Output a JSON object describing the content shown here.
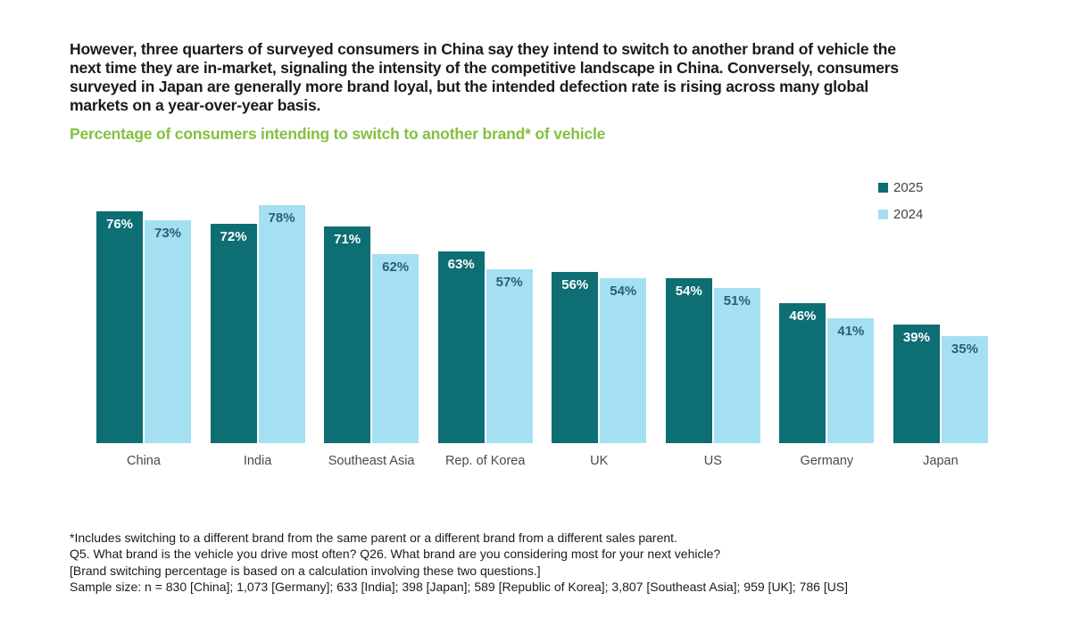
{
  "headline": "However, three quarters of surveyed consumers in China say they intend to switch to another brand of vehicle the next time they are in-market, signaling the intensity of the competitive landscape in China. Conversely, consumers surveyed in Japan are generally more brand loyal, but the intended defection rate is rising across many global markets on a year-over-year basis.",
  "subtitle": "Percentage of consumers intending to switch to another brand* of vehicle",
  "colors": {
    "series_2025": "#0d6e74",
    "series_2024": "#a4e0f2",
    "label_on_dark": "#ffffff",
    "label_on_light": "#2a5d7a",
    "subtitle_green": "#85bf41"
  },
  "chart_data": {
    "type": "bar",
    "title": "Percentage of consumers intending to switch to another brand* of vehicle",
    "categories": [
      "China",
      "India",
      "Southeast Asia",
      "Rep. of Korea",
      "UK",
      "US",
      "Germany",
      "Japan"
    ],
    "series": [
      {
        "name": "2025",
        "color": "#0d6e74",
        "label_color": "#ffffff",
        "values": [
          76,
          72,
          71,
          63,
          56,
          54,
          46,
          39
        ]
      },
      {
        "name": "2024",
        "color": "#a4e0f2",
        "label_color": "#2a5d7a",
        "values": [
          73,
          78,
          62,
          57,
          54,
          51,
          41,
          35
        ]
      }
    ],
    "value_suffix": "%",
    "xlabel": "",
    "ylabel": "",
    "ylim": [
      0,
      88
    ],
    "grid": false,
    "value_labels": "inside-top",
    "legend_position": "top-right"
  },
  "footnotes": [
    "*Includes switching to a different brand from the same parent or a different brand from a different sales parent.",
    "Q5. What brand is the vehicle you drive most often? Q26. What brand are you considering most for your next vehicle?",
    "[Brand switching percentage is based on a calculation involving these two questions.]",
    "Sample size: n = 830 [China]; 1,073 [Germany]; 633 [India]; 398 [Japan]; 589 [Republic of Korea]; 3,807 [Southeast Asia]; 959 [UK]; 786 [US]"
  ]
}
